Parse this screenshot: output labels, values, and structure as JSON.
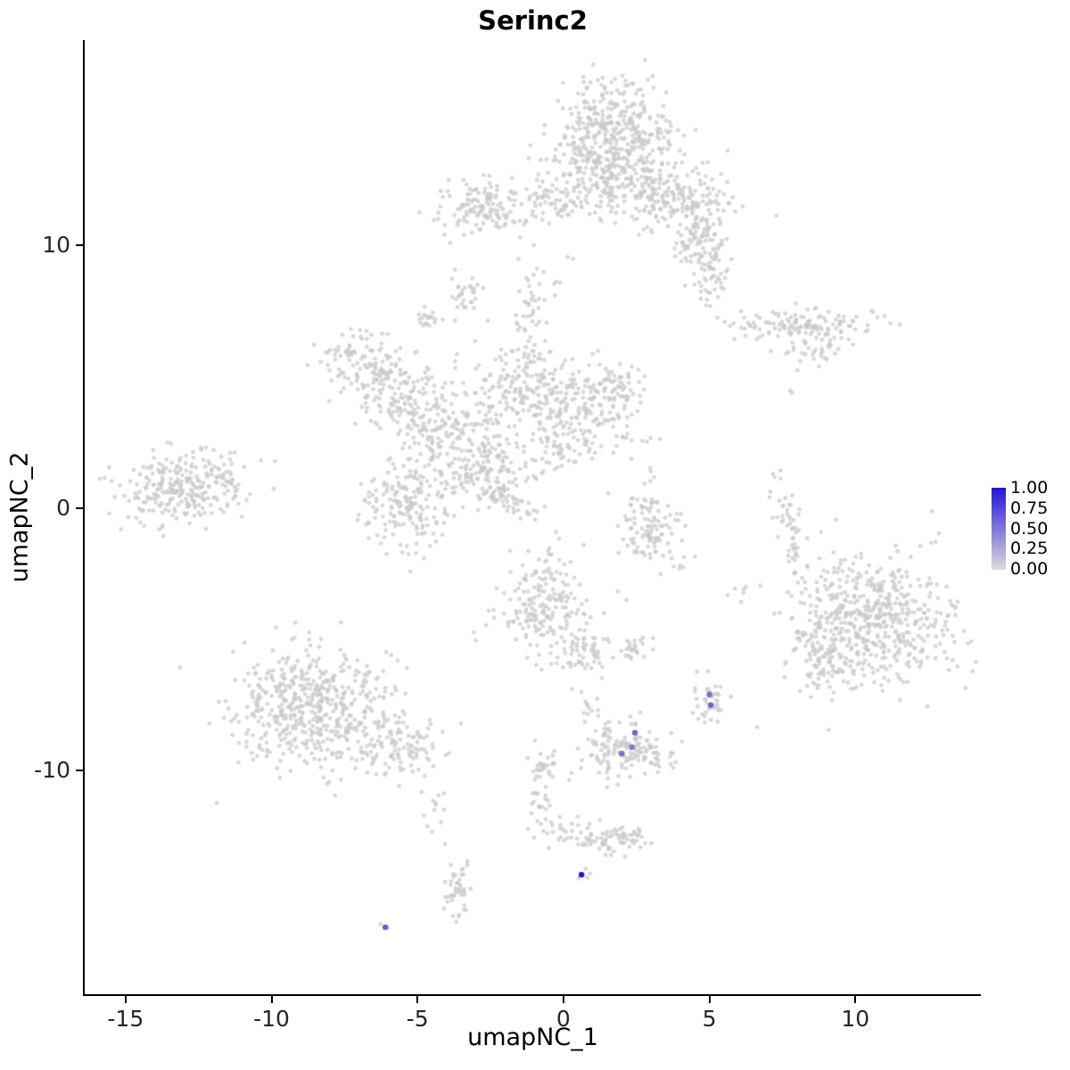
{
  "chart_data": {
    "type": "scatter",
    "title": "Serinc2",
    "xlabel": "umapNC_1",
    "ylabel": "umapNC_2",
    "x_ticks": [
      "-15",
      "-10",
      "-5",
      "0",
      "5",
      "10"
    ],
    "x_tick_values": [
      -15,
      -10,
      -5,
      0,
      5,
      10
    ],
    "y_ticks": [
      "10",
      "0",
      "-10"
    ],
    "y_tick_values": [
      10,
      0,
      -10
    ],
    "x_range": [
      -16.4,
      14.3
    ],
    "y_range": [
      -18.5,
      17.8
    ],
    "grid": false,
    "background_point_color": "#d4d4d4",
    "legend": {
      "position": "right",
      "tick_labels": [
        "1.00",
        "0.75",
        "0.50",
        "0.25",
        "0.00"
      ],
      "tick_values": [
        1.0,
        0.75,
        0.5,
        0.25,
        0.0
      ],
      "high_color": "#2412d9",
      "low_color": "#dcdcdc"
    },
    "background_clusters": [
      {
        "x": 1.6,
        "y": 14.3,
        "sx": 1.05,
        "sy": 0.95,
        "n": 380
      },
      {
        "x": 2.1,
        "y": 12.6,
        "sx": 1.3,
        "sy": 0.6,
        "n": 180
      },
      {
        "x": 3.9,
        "y": 11.6,
        "sx": 1.0,
        "sy": 0.55,
        "n": 140
      },
      {
        "x": 4.7,
        "y": 10.2,
        "sx": 0.45,
        "sy": 0.7,
        "n": 90
      },
      {
        "x": 5.0,
        "y": 8.9,
        "sx": 0.35,
        "sy": 0.5,
        "n": 45
      },
      {
        "x": 0.0,
        "y": 11.7,
        "sx": 0.9,
        "sy": 0.45,
        "n": 90
      },
      {
        "x": -2.7,
        "y": 11.4,
        "sx": 0.75,
        "sy": 0.55,
        "n": 130
      },
      {
        "x": -3.4,
        "y": 8.2,
        "sx": 0.3,
        "sy": 0.35,
        "n": 30
      },
      {
        "x": -4.6,
        "y": 7.1,
        "sx": 0.3,
        "sy": 0.25,
        "n": 20
      },
      {
        "x": -1.2,
        "y": 7.2,
        "sx": 0.3,
        "sy": 0.8,
        "n": 35
      },
      {
        "x": -0.6,
        "y": 8.9,
        "sx": 0.5,
        "sy": 0.6,
        "n": 12
      },
      {
        "x": 8.2,
        "y": 6.9,
        "sx": 1.2,
        "sy": 0.4,
        "n": 140
      },
      {
        "x": 8.8,
        "y": 5.9,
        "sx": 0.4,
        "sy": 0.3,
        "n": 25
      },
      {
        "x": 7.8,
        "y": 4.4,
        "sx": 0.1,
        "sy": 0.1,
        "n": 2
      },
      {
        "x": -6.9,
        "y": 5.6,
        "sx": 0.75,
        "sy": 0.6,
        "n": 110
      },
      {
        "x": -5.6,
        "y": 4.3,
        "sx": 0.85,
        "sy": 0.65,
        "n": 130
      },
      {
        "x": -4.4,
        "y": 3.1,
        "sx": 0.8,
        "sy": 0.6,
        "n": 110
      },
      {
        "x": -1.3,
        "y": 4.6,
        "sx": 0.95,
        "sy": 0.85,
        "n": 200
      },
      {
        "x": 0.9,
        "y": 3.7,
        "sx": 0.85,
        "sy": 0.8,
        "n": 170
      },
      {
        "x": 2.0,
        "y": 4.7,
        "sx": 0.4,
        "sy": 0.4,
        "n": 35
      },
      {
        "x": -2.9,
        "y": 1.6,
        "sx": 0.85,
        "sy": 0.8,
        "n": 170
      },
      {
        "x": -5.4,
        "y": 0.3,
        "sx": 0.85,
        "sy": 0.85,
        "n": 180
      },
      {
        "x": -2.0,
        "y": 0.3,
        "sx": 0.6,
        "sy": 0.22,
        "n": 55,
        "rot": -0.55
      },
      {
        "x": -0.3,
        "y": 2.2,
        "sx": 0.5,
        "sy": 0.5,
        "n": 40
      },
      {
        "x": -13.0,
        "y": 0.8,
        "sx": 1.15,
        "sy": 0.65,
        "n": 280,
        "rot": 0.15
      },
      {
        "x": 2.9,
        "y": -0.9,
        "sx": 0.55,
        "sy": 0.85,
        "n": 110
      },
      {
        "x": 2.9,
        "y": 1.2,
        "sx": 0.15,
        "sy": 0.9,
        "n": 8
      },
      {
        "x": 7.7,
        "y": -0.9,
        "sx": 0.22,
        "sy": 0.9,
        "n": 55,
        "rot": 0.2
      },
      {
        "x": 10.7,
        "y": -4.3,
        "sx": 1.35,
        "sy": 1.25,
        "n": 520
      },
      {
        "x": 8.8,
        "y": -5.3,
        "sx": 0.55,
        "sy": 0.9,
        "n": 90
      },
      {
        "x": 9.3,
        "y": -2.3,
        "sx": 0.4,
        "sy": 0.3,
        "n": 12
      },
      {
        "x": 6.2,
        "y": -3.2,
        "sx": 0.3,
        "sy": 0.25,
        "n": 6
      },
      {
        "x": 4.1,
        "y": -2.0,
        "sx": 0.3,
        "sy": 0.3,
        "n": 4
      },
      {
        "x": -0.6,
        "y": -3.7,
        "sx": 0.8,
        "sy": 0.95,
        "n": 200
      },
      {
        "x": 0.7,
        "y": -5.6,
        "sx": 0.5,
        "sy": 0.45,
        "n": 55
      },
      {
        "x": 2.4,
        "y": -5.3,
        "sx": 0.3,
        "sy": 0.3,
        "n": 25
      },
      {
        "x": -8.6,
        "y": -7.6,
        "sx": 1.35,
        "sy": 1.15,
        "n": 520,
        "rot": 0.3
      },
      {
        "x": -5.6,
        "y": -9.0,
        "sx": 0.8,
        "sy": 0.55,
        "n": 110,
        "rot": 0.3
      },
      {
        "x": -4.4,
        "y": -11.3,
        "sx": 0.25,
        "sy": 0.4,
        "n": 12
      },
      {
        "x": 2.2,
        "y": -9.3,
        "sx": 0.75,
        "sy": 0.55,
        "n": 150
      },
      {
        "x": 5.0,
        "y": -7.35,
        "sx": 0.3,
        "sy": 0.45,
        "n": 40
      },
      {
        "x": 0.9,
        "y": -7.6,
        "sx": 0.35,
        "sy": 0.5,
        "n": 14
      },
      {
        "x": -0.6,
        "y": -9.7,
        "sx": 0.3,
        "sy": 0.5,
        "n": 30
      },
      {
        "x": -0.9,
        "y": -11.2,
        "sx": 0.2,
        "sy": 0.5,
        "n": 20
      },
      {
        "x": -0.2,
        "y": -12.3,
        "sx": 0.4,
        "sy": 0.3,
        "n": 20
      },
      {
        "x": 1.2,
        "y": -12.6,
        "sx": 0.6,
        "sy": 0.3,
        "n": 50
      },
      {
        "x": 2.3,
        "y": -12.5,
        "sx": 0.3,
        "sy": 0.25,
        "n": 30
      },
      {
        "x": -3.6,
        "y": -14.4,
        "sx": 0.28,
        "sy": 0.65,
        "n": 45
      },
      {
        "x": 0.7,
        "y": -13.9,
        "sx": 0.15,
        "sy": 0.12,
        "n": 4
      },
      {
        "x": -6.05,
        "y": -15.95,
        "sx": 0.12,
        "sy": 0.1,
        "n": 3
      }
    ],
    "expressing_cells": [
      {
        "x": 5.0,
        "y": -7.1,
        "value": 0.55
      },
      {
        "x": 5.05,
        "y": -7.5,
        "value": 0.6
      },
      {
        "x": 2.45,
        "y": -8.55,
        "value": 0.6
      },
      {
        "x": 2.35,
        "y": -9.1,
        "value": 0.5
      },
      {
        "x": 2.0,
        "y": -9.35,
        "value": 0.55
      },
      {
        "x": 0.62,
        "y": -13.95,
        "value": 1.0
      },
      {
        "x": -6.1,
        "y": -15.95,
        "value": 0.65
      }
    ]
  }
}
